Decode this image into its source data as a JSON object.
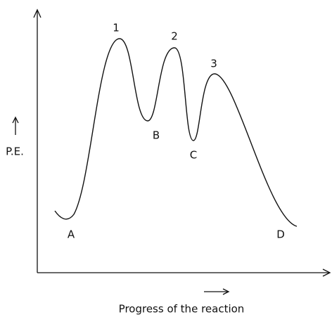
{
  "axes": {
    "y_label": "P.E.",
    "x_label": "Progress of the reaction"
  },
  "peaks": [
    "1",
    "2",
    "3"
  ],
  "points": [
    "A",
    "B",
    "C",
    "D"
  ]
}
